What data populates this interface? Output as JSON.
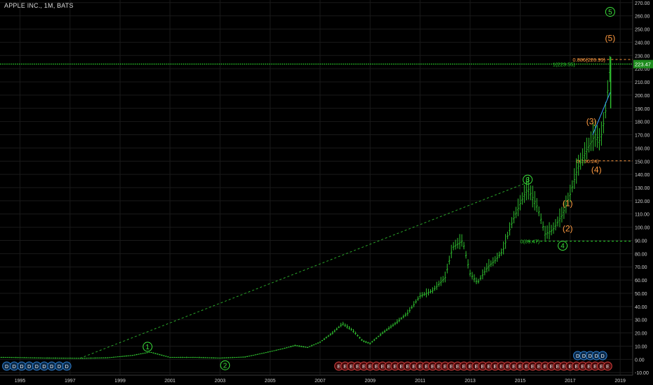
{
  "header": {
    "title": "APPLE INC., 1M, BATS"
  },
  "price_tag": {
    "value": "223.47",
    "color": "#1e8c1e"
  },
  "colors": {
    "background": "#000000",
    "bars": "#2fbf2f",
    "wave_major": "#3be03b",
    "wave_minor": "#ff9a40",
    "trend_line": "#2aa52a",
    "fib_green": "#2ad02a",
    "fib_orange": "#ff9a40",
    "projection": "#3aa0ff",
    "dividend_badge": "#2f7fd0",
    "earnings_badge": "#d04040",
    "axis_text": "#cfcfcf"
  },
  "chart_data": {
    "type": "bar",
    "title": "APPLE INC., 1M, BATS",
    "ylim": [
      -12,
      272
    ],
    "xlim": [
      1994.2,
      2019.5
    ],
    "y_ticks": [
      "-10.00",
      "0.00",
      "10.00",
      "20.00",
      "30.00",
      "40.00",
      "50.00",
      "60.00",
      "70.00",
      "80.00",
      "90.00",
      "100.00",
      "110.00",
      "120.00",
      "130.00",
      "140.00",
      "150.00",
      "160.00",
      "170.00",
      "180.00",
      "190.00",
      "200.00",
      "210.00",
      "220.00",
      "230.00",
      "240.00",
      "250.00",
      "260.00",
      "270.00"
    ],
    "x_ticks": [
      "1995",
      "1997",
      "1999",
      "2001",
      "2003",
      "2005",
      "2007",
      "2009",
      "2011",
      "2013",
      "2015",
      "2017",
      "2019"
    ],
    "series": [
      {
        "x": [
          1994.5,
          1996.0,
          1997.5,
          1998.5,
          1999.5,
          2000.2,
          2000.5,
          2001.0,
          2002.0,
          2003.0,
          2004.0,
          2004.8,
          2005.5,
          2006.0,
          2006.5,
          2007.0,
          2007.5,
          2007.9,
          2008.3,
          2008.7,
          2009.0,
          2009.5,
          2010.0,
          2010.5,
          2011.0,
          2011.5,
          2012.0,
          2012.3,
          2012.7,
          2013.0,
          2013.3,
          2013.7,
          2014.0,
          2014.3,
          2014.7,
          2015.0,
          2015.3,
          2015.7,
          2016.0,
          2016.3,
          2016.7,
          2017.0,
          2017.3,
          2017.7,
          2018.0,
          2018.2,
          2018.4,
          2018.6
        ],
        "values": [
          1.5,
          1.0,
          0.8,
          1.2,
          3.0,
          5.5,
          4.0,
          1.5,
          1.5,
          1.0,
          1.8,
          5.0,
          8.0,
          10.5,
          9.0,
          13.0,
          20.0,
          27.0,
          22.0,
          14.0,
          12.0,
          20.0,
          27.0,
          35.0,
          48.0,
          52.0,
          62.0,
          85.0,
          90.0,
          65.0,
          58.0,
          70.0,
          75.0,
          82.0,
          105.0,
          118.0,
          130.0,
          115.0,
          95.0,
          98.0,
          110.0,
          125.0,
          145.0,
          160.0,
          170.0,
          165.0,
          185.0,
          222.0
        ]
      }
    ],
    "annotations": {
      "wave_major": [
        {
          "label": "1",
          "x": 2000.1,
          "y": 9.5
        },
        {
          "label": "2",
          "x": 2003.2,
          "y": -4.5
        },
        {
          "label": "3",
          "x": 2015.3,
          "y": 136.0
        },
        {
          "label": "4",
          "x": 2016.7,
          "y": 86.0
        },
        {
          "label": "5",
          "x": 2018.6,
          "y": 263.0
        }
      ],
      "wave_minor": [
        {
          "label": "(1)",
          "x": 2016.9,
          "y": 118.0
        },
        {
          "label": "(2)",
          "x": 2016.9,
          "y": 99.0
        },
        {
          "label": "(3)",
          "x": 2017.85,
          "y": 180.0
        },
        {
          "label": "(4)",
          "x": 2018.05,
          "y": 143.5
        },
        {
          "label": "(5)",
          "x": 2018.6,
          "y": 243.0
        }
      ],
      "fib_levels": [
        {
          "label": "1(223.55)",
          "value": 223.55,
          "color": "green",
          "x_start": 1994.2
        },
        {
          "label": "0.886(226.99)",
          "value": 226.99,
          "color": "orange",
          "x_start": 2017.3
        },
        {
          "label": "0(150.24)",
          "value": 150.24,
          "color": "orange",
          "x_start": 2017.3
        },
        {
          "label": "0(89.47)",
          "value": 89.47,
          "color": "green",
          "x_start": 2015.3
        }
      ],
      "trend_line": {
        "from": [
          1997.4,
          0.8
        ],
        "to": [
          2015.3,
          134.0
        ]
      },
      "projection": {
        "from": [
          2017.9,
          170.0
        ],
        "to": [
          2018.6,
          202.0
        ]
      },
      "dividend_markers": {
        "label": "D",
        "early_x": [
          1994.3,
          1994.6,
          1994.9,
          1995.2,
          1995.5,
          1995.8,
          1996.1,
          1996.4,
          1996.7
        ],
        "late_x": [
          2017.3,
          2017.55,
          2017.8,
          2018.05,
          2018.3
        ]
      },
      "earnings_markers": {
        "label": "E",
        "start_x": 2007.75,
        "end_x": 2018.7,
        "step": 0.25
      }
    }
  }
}
